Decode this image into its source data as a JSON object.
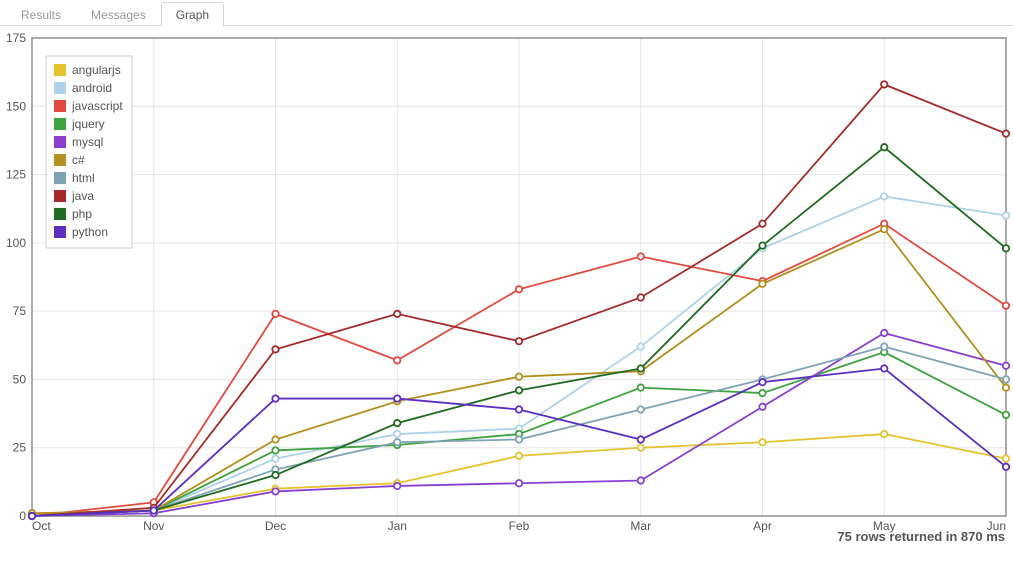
{
  "tabs": [
    {
      "label": "Results",
      "active": false
    },
    {
      "label": "Messages",
      "active": false
    },
    {
      "label": "Graph",
      "active": true
    }
  ],
  "status_text": "75 rows returned in 870 ms",
  "chart": {
    "type": "line",
    "background_color": "#ffffff",
    "grid_color": "#e5e5e5",
    "border_color": "#8f8f8f",
    "axis_font_size": 12,
    "legend": {
      "position": "top-left",
      "box_stroke": "#cccccc",
      "box_fill": "#ffffff",
      "font_size": 12,
      "swatch_size": 12
    },
    "x": {
      "categories": [
        "Oct",
        "Nov",
        "Dec",
        "Jan",
        "Feb",
        "Mar",
        "Apr",
        "May",
        "Jun"
      ]
    },
    "y": {
      "min": 0,
      "max": 175,
      "tick_step": 25
    },
    "line_width": 1.8,
    "marker_radius": 3.2,
    "marker_fill": "#ffffff",
    "series": [
      {
        "name": "angularjs",
        "color": "#e6c22e",
        "values": [
          1,
          2,
          10,
          12,
          22,
          25,
          27,
          30,
          21
        ]
      },
      {
        "name": "android",
        "color": "#aed2ea",
        "values": [
          0,
          2,
          21,
          30,
          32,
          62,
          98,
          117,
          110
        ]
      },
      {
        "name": "javascript",
        "color": "#e24a3f",
        "values": [
          0,
          5,
          74,
          57,
          83,
          95,
          86,
          107,
          77
        ]
      },
      {
        "name": "jquery",
        "color": "#3fa33f",
        "values": [
          0,
          2,
          24,
          26,
          30,
          47,
          45,
          60,
          37
        ]
      },
      {
        "name": "mysql",
        "color": "#8a3fd1",
        "values": [
          0,
          1,
          9,
          11,
          12,
          13,
          40,
          67,
          55
        ]
      },
      {
        "name": "c#",
        "color": "#b38f1e",
        "values": [
          1,
          2,
          28,
          42,
          51,
          53,
          85,
          105,
          47
        ]
      },
      {
        "name": "html",
        "color": "#7fa3b5",
        "values": [
          0,
          2,
          17,
          27,
          28,
          39,
          50,
          62,
          50
        ]
      },
      {
        "name": "java",
        "color": "#a52a2a",
        "values": [
          0,
          3,
          61,
          74,
          64,
          80,
          107,
          158,
          140
        ]
      },
      {
        "name": "php",
        "color": "#1f6b1f",
        "values": [
          0,
          2,
          15,
          34,
          46,
          54,
          99,
          135,
          98
        ]
      },
      {
        "name": "python",
        "color": "#5b2fbf",
        "values": [
          0,
          2,
          43,
          43,
          39,
          28,
          49,
          54,
          18
        ]
      }
    ]
  }
}
